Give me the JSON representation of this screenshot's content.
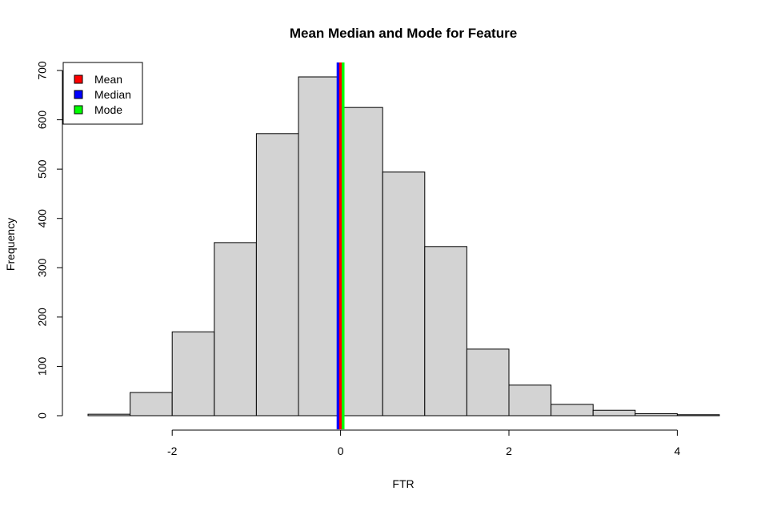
{
  "chart_data": {
    "type": "bar",
    "title": "Mean Median and Mode for Feature",
    "xlabel": "FTR",
    "ylabel": "Frequency",
    "bins": [
      {
        "x0": -3.0,
        "x1": -2.5,
        "count": 3
      },
      {
        "x0": -2.5,
        "x1": -2.0,
        "count": 47
      },
      {
        "x0": -2.0,
        "x1": -1.5,
        "count": 170
      },
      {
        "x0": -1.5,
        "x1": -1.0,
        "count": 351
      },
      {
        "x0": -1.0,
        "x1": -0.5,
        "count": 572
      },
      {
        "x0": -0.5,
        "x1": 0.0,
        "count": 687
      },
      {
        "x0": 0.0,
        "x1": 0.5,
        "count": 625
      },
      {
        "x0": 0.5,
        "x1": 1.0,
        "count": 494
      },
      {
        "x0": 1.0,
        "x1": 1.5,
        "count": 343
      },
      {
        "x0": 1.5,
        "x1": 2.0,
        "count": 135
      },
      {
        "x0": 2.0,
        "x1": 2.5,
        "count": 62
      },
      {
        "x0": 2.5,
        "x1": 3.0,
        "count": 23
      },
      {
        "x0": 3.0,
        "x1": 3.5,
        "count": 11
      },
      {
        "x0": 3.5,
        "x1": 4.0,
        "count": 4
      },
      {
        "x0": 4.0,
        "x1": 4.5,
        "count": 2
      }
    ],
    "x_ticks": [
      -2,
      0,
      2,
      4
    ],
    "x_tick_labels": [
      "-2",
      "0",
      "2",
      "4"
    ],
    "y_ticks": [
      0,
      100,
      200,
      300,
      400,
      500,
      600,
      700
    ],
    "y_tick_labels": [
      "0",
      "100",
      "200",
      "300",
      "400",
      "500",
      "600",
      "700"
    ],
    "xlim": [
      -3.0,
      4.5
    ],
    "ylim": [
      0,
      700
    ],
    "bar_color": "#d3d3d3",
    "vlines": [
      {
        "name": "Mean",
        "x": 0.0,
        "color": "#ff0000"
      },
      {
        "name": "Median",
        "x": -0.03,
        "color": "#0000ff"
      },
      {
        "name": "Mode",
        "x": 0.03,
        "color": "#00ff00"
      }
    ],
    "legend": {
      "position": "top-left",
      "entries": [
        {
          "label": "Mean",
          "color": "#ff0000"
        },
        {
          "label": "Median",
          "color": "#0000ff"
        },
        {
          "label": "Mode",
          "color": "#00ff00"
        }
      ]
    },
    "grid": false
  }
}
